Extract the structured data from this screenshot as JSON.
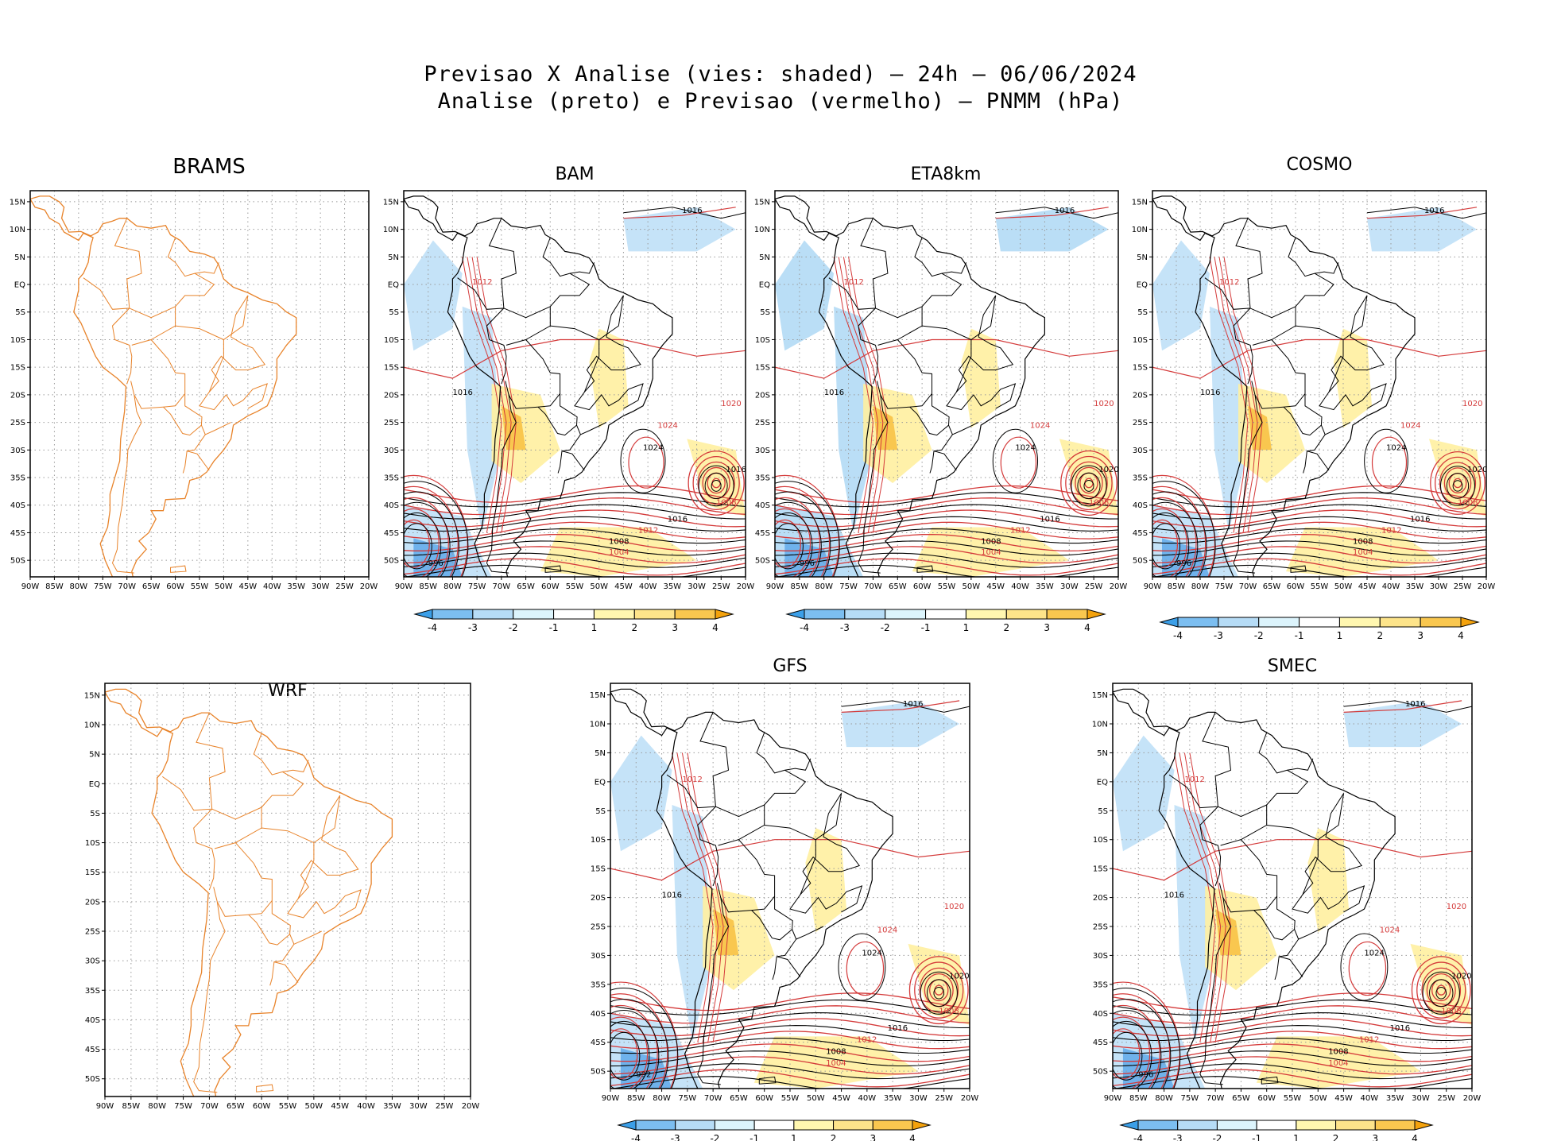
{
  "header": {
    "line1": "Previsao X Analise (vies: shaded) – 24h – 06/06/2024",
    "line2": "Analise (preto) e Previsao (vermelho) – PNMM (hPa)"
  },
  "axes": {
    "lat_labels": [
      "15N",
      "10N",
      "5N",
      "EQ",
      "5S",
      "10S",
      "15S",
      "20S",
      "25S",
      "30S",
      "35S",
      "40S",
      "45S",
      "50S"
    ],
    "lon_labels": [
      "90W",
      "85W",
      "80W",
      "75W",
      "70W",
      "65W",
      "60W",
      "55W",
      "50W",
      "45W",
      "40W",
      "35W",
      "30W",
      "25W",
      "20W"
    ]
  },
  "colorbar": {
    "labels": [
      "-4",
      "-3",
      "-2",
      "-1",
      "1",
      "2",
      "3",
      "4"
    ],
    "colors": [
      "#3b9fe8",
      "#7cbef0",
      "#b6dcf6",
      "#dcf4fc",
      "#ffffff",
      "#fff7b0",
      "#fde48a",
      "#f9c74f",
      "#f4a20c"
    ]
  },
  "colors": {
    "analysis": "#000000",
    "forecast": "#d43a3a",
    "coast_bare": "#e8832a",
    "grid": "#9a9a9a",
    "bias_neg": "#b6dcf6",
    "bias_pos": "#fff0a0"
  },
  "panels": [
    {
      "id": "brams",
      "title": "BRAMS",
      "has_data": false
    },
    {
      "id": "bam",
      "title": "BAM",
      "has_data": true,
      "contour_labels": [
        "1016",
        "1012",
        "1016",
        "1020",
        "1024",
        "1024",
        "1016",
        "1012",
        "1008",
        "1004",
        "1016",
        "1008",
        "996"
      ]
    },
    {
      "id": "eta",
      "title": "ETA8km",
      "has_data": true,
      "contour_labels": [
        "1016",
        "1012",
        "1016",
        "1020",
        "1024",
        "1024",
        "1016",
        "1012",
        "1008",
        "1004",
        "1020",
        "1008",
        "996"
      ]
    },
    {
      "id": "cosmo",
      "title": "COSMO",
      "has_data": true,
      "contour_labels": [
        "1016",
        "1012",
        "1016",
        "1020",
        "1024",
        "1024",
        "1016",
        "1012",
        "1008",
        "1004",
        "1020",
        "1008",
        "996"
      ]
    },
    {
      "id": "wrf",
      "title": "WRF",
      "has_data": false
    },
    {
      "id": "gfs",
      "title": "GFS",
      "has_data": true,
      "contour_labels": [
        "1016",
        "1012",
        "1016",
        "1020",
        "1024",
        "1024",
        "1016",
        "1012",
        "1008",
        "1004",
        "1020",
        "1008",
        "992"
      ]
    },
    {
      "id": "smec",
      "title": "SMEC",
      "has_data": true,
      "contour_labels": [
        "1016",
        "1012",
        "1016",
        "1020",
        "1024",
        "1024",
        "1016",
        "1012",
        "1008",
        "1004",
        "1020",
        "1008",
        "996"
      ]
    }
  ]
}
